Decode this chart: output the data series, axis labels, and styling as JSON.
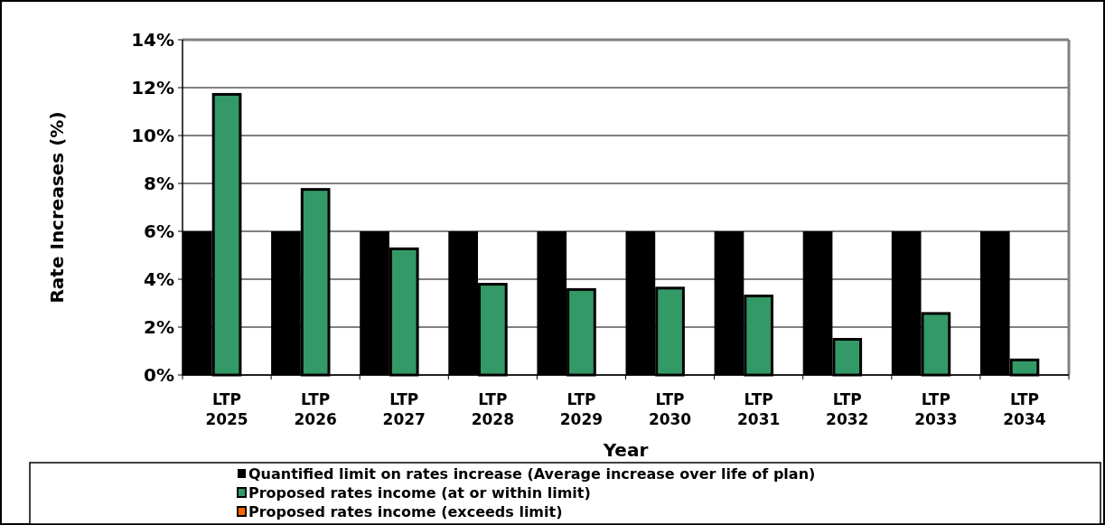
{
  "chart_data": {
    "type": "bar",
    "xlabel": "Year",
    "ylabel": "Rate Increases (%)",
    "categories": [
      "LTP 2025",
      "LTP 2026",
      "LTP 2027",
      "LTP 2028",
      "LTP 2029",
      "LTP 2030",
      "LTP 2031",
      "LTP 2032",
      "LTP 2033",
      "LTP 2034"
    ],
    "series": [
      {
        "name": "Quantified limit on rates increase (Average increase over life of plan)",
        "color": "#000000",
        "values": [
          6,
          6,
          6,
          6,
          6,
          6,
          6,
          6,
          6,
          6
        ]
      },
      {
        "name": "Proposed rates income (at or within limit)",
        "color": "#339966",
        "values": [
          11.72,
          7.75,
          5.27,
          3.79,
          3.57,
          3.63,
          3.3,
          1.49,
          2.57,
          0.63
        ]
      },
      {
        "name": "Proposed rates income (exceeds limit)",
        "color": "#ff6600",
        "values": [
          null,
          null,
          null,
          null,
          null,
          null,
          null,
          null,
          null,
          null
        ]
      }
    ],
    "ylim": [
      0,
      14
    ],
    "yticks": [
      {
        "value": 0,
        "label": "0%"
      },
      {
        "value": 2,
        "label": "2%"
      },
      {
        "value": 4,
        "label": "4%"
      },
      {
        "value": 6,
        "label": "6%"
      },
      {
        "value": 8,
        "label": "8%"
      },
      {
        "value": 10,
        "label": "10%"
      },
      {
        "value": 12,
        "label": "12%"
      },
      {
        "value": 14,
        "label": "14%"
      }
    ],
    "grid": "y",
    "legend": "bottom"
  }
}
